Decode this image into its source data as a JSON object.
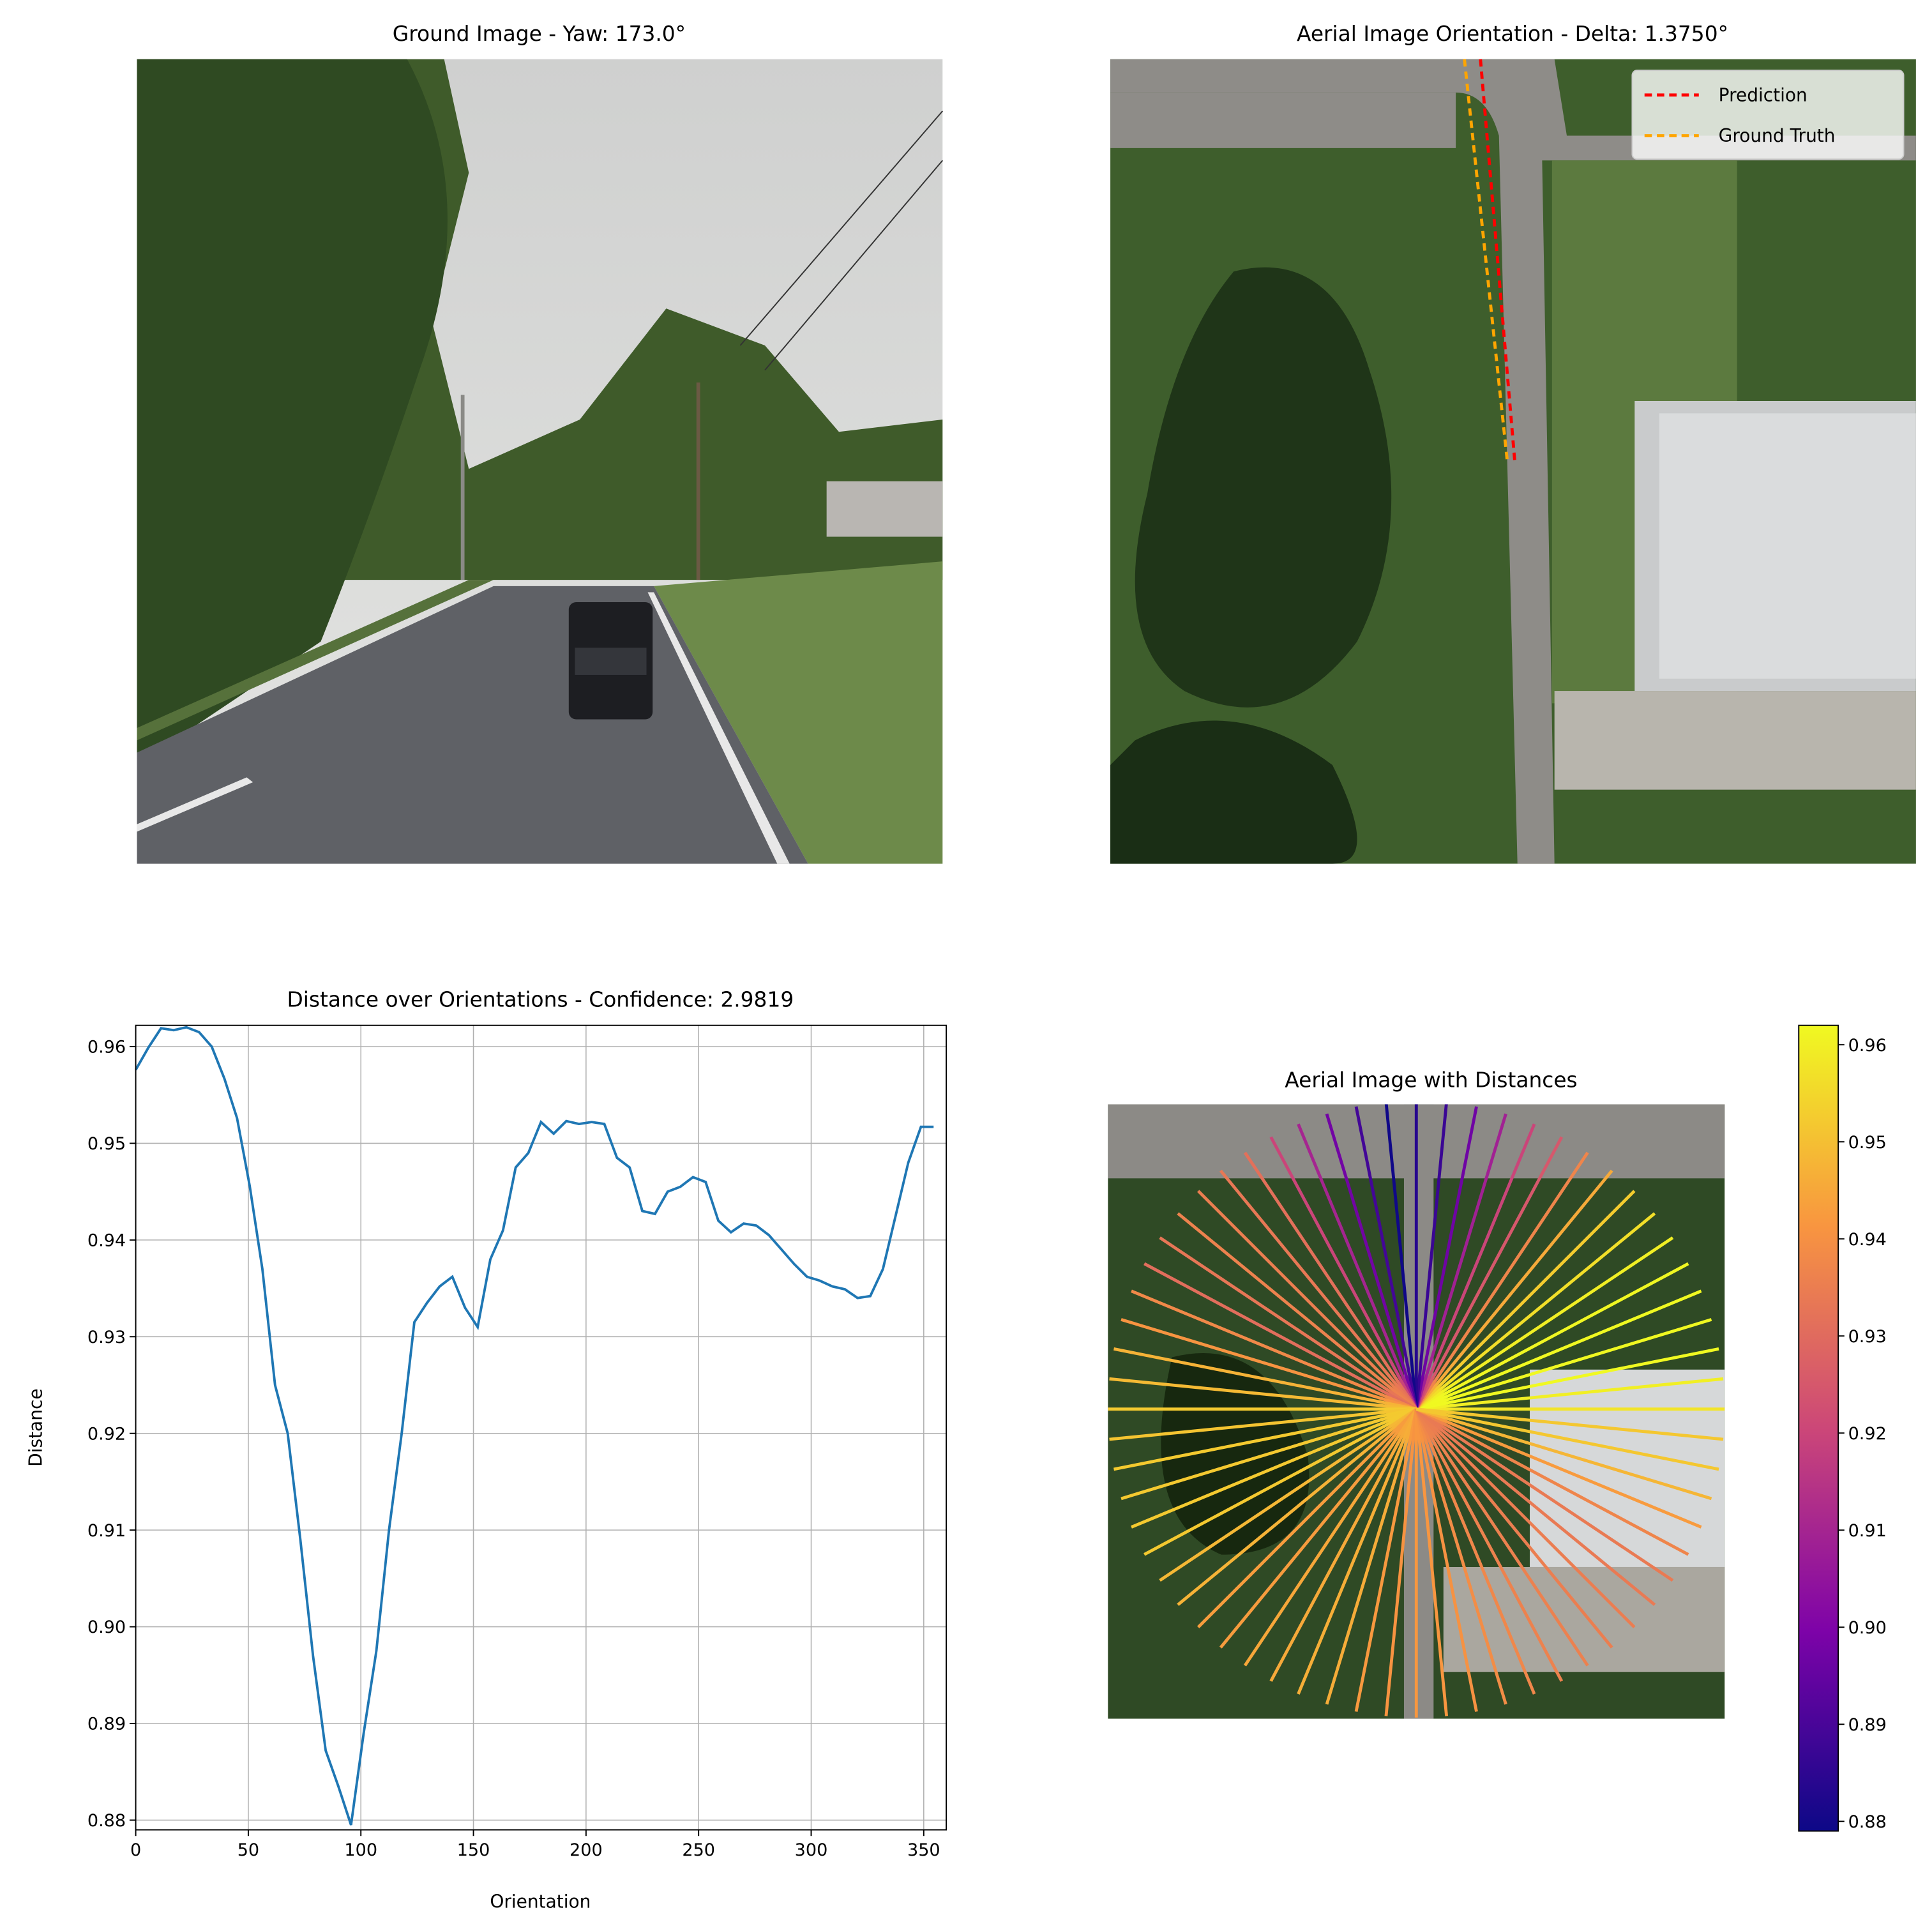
{
  "chart_data": [
    {
      "type": "image",
      "title": "Ground Image - Yaw: 173.0°"
    },
    {
      "type": "image",
      "title": "Aerial Image Orientation - Delta: 1.3750°",
      "series": [
        {
          "name": "Prediction",
          "color": "#ff0000"
        },
        {
          "name": "Ground Truth",
          "color": "#ffa500"
        }
      ]
    },
    {
      "type": "line",
      "title": "Distance over Orientations - Confidence: 2.9819",
      "x_label": "Orientation",
      "y_label": "Distance",
      "color": "#1f77b4",
      "grid": true,
      "x": [
        0,
        5.625,
        11.25,
        16.875,
        22.5,
        28.125,
        33.75,
        39.375,
        45,
        50.625,
        56.25,
        61.875,
        67.5,
        73.125,
        78.75,
        84.375,
        90,
        95.625,
        101.25,
        106.875,
        112.5,
        118.125,
        123.75,
        129.375,
        135,
        140.625,
        146.25,
        151.875,
        157.5,
        163.125,
        168.75,
        174.375,
        180,
        185.625,
        191.25,
        196.875,
        202.5,
        208.125,
        213.75,
        219.375,
        225,
        230.625,
        236.25,
        241.875,
        247.5,
        253.125,
        258.75,
        264.375,
        270,
        275.625,
        281.25,
        286.875,
        292.5,
        298.125,
        303.75,
        309.375,
        315,
        320.625,
        326.25,
        331.875,
        337.5,
        343.125,
        348.75,
        354.375
      ],
      "values": [
        0.9576,
        0.9599,
        0.9619,
        0.9617,
        0.962,
        0.9615,
        0.96,
        0.9567,
        0.9526,
        0.9456,
        0.937,
        0.925,
        0.92,
        0.909,
        0.897,
        0.8872,
        0.8835,
        0.8795,
        0.889,
        0.8975,
        0.91,
        0.92,
        0.9315,
        0.9335,
        0.9352,
        0.9362,
        0.933,
        0.931,
        0.938,
        0.941,
        0.9475,
        0.949,
        0.9522,
        0.951,
        0.9523,
        0.952,
        0.9522,
        0.952,
        0.9485,
        0.9475,
        0.943,
        0.9427,
        0.945,
        0.9455,
        0.9465,
        0.946,
        0.942,
        0.9408,
        0.9417,
        0.9415,
        0.9405,
        0.939,
        0.9375,
        0.9362,
        0.9358,
        0.9352,
        0.9349,
        0.934,
        0.9342,
        0.937,
        0.9425,
        0.948,
        0.9517,
        0.9517
      ],
      "xlim": [
        0,
        360
      ],
      "xticks": [
        0,
        50,
        100,
        150,
        200,
        250,
        300,
        350
      ],
      "ylim": [
        0.879,
        0.9622
      ],
      "yticks": [
        0.88,
        0.89,
        {
          "value": 0.9,
          "label": "0.90"
        },
        0.91,
        0.92,
        0.93,
        0.94,
        0.95,
        0.96
      ]
    },
    {
      "type": "radial",
      "title": "Aerial Image with Distances",
      "colormap": "plasma",
      "clim": [
        0.879,
        0.962
      ],
      "cticks": [
        0.88,
        0.89,
        {
          "value": 0.9,
          "label": "0.90"
        },
        0.91,
        0.92,
        0.93,
        0.94,
        0.95,
        0.96
      ]
    }
  ]
}
